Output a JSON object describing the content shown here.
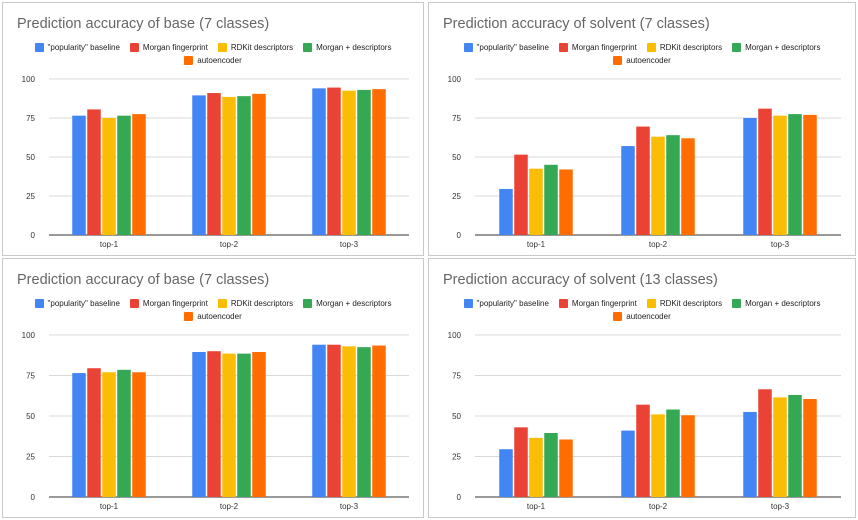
{
  "legend_labels": [
    "\"popularity\" baseline",
    "Morgan fingerprint",
    "RDKit descriptors",
    "Morgan + descriptors",
    "autoencoder"
  ],
  "colors": [
    "#4285f4",
    "#ea4335",
    "#fbbc04",
    "#34a853",
    "#ff6d01"
  ],
  "chart_data": [
    {
      "type": "bar",
      "title": "Prediction accuracy of base (7 classes)",
      "categories": [
        "top-1",
        "top-2",
        "top-3"
      ],
      "yticks": [
        "0",
        "25",
        "50",
        "75",
        "100"
      ],
      "ylim": [
        0,
        100
      ],
      "series": [
        {
          "name": "\"popularity\" baseline",
          "values": [
            76.5,
            89.5,
            94
          ]
        },
        {
          "name": "Morgan fingerprint",
          "values": [
            80.5,
            91,
            94.5
          ]
        },
        {
          "name": "RDKit descriptors",
          "values": [
            75,
            88.5,
            92.5
          ]
        },
        {
          "name": "Morgan + descriptors",
          "values": [
            76.5,
            89,
            93
          ]
        },
        {
          "name": "autoencoder",
          "values": [
            77.5,
            90.5,
            93.5
          ]
        }
      ]
    },
    {
      "type": "bar",
      "title": "Prediction accuracy of solvent (7 classes)",
      "categories": [
        "top-1",
        "top-2",
        "top-3"
      ],
      "yticks": [
        "0",
        "25",
        "50",
        "75",
        "100"
      ],
      "ylim": [
        0,
        100
      ],
      "series": [
        {
          "name": "\"popularity\" baseline",
          "values": [
            29.5,
            57,
            75
          ]
        },
        {
          "name": "Morgan fingerprint",
          "values": [
            51.5,
            69.5,
            81
          ]
        },
        {
          "name": "RDKit descriptors",
          "values": [
            42.5,
            63,
            76.5
          ]
        },
        {
          "name": "Morgan + descriptors",
          "values": [
            45,
            64,
            77.5
          ]
        },
        {
          "name": "autoencoder",
          "values": [
            42,
            62,
            77
          ]
        }
      ]
    },
    {
      "type": "bar",
      "title": "Prediction accuracy of base (7 classes)",
      "categories": [
        "top-1",
        "top-2",
        "top-3"
      ],
      "yticks": [
        "0",
        "25",
        "50",
        "75",
        "100"
      ],
      "ylim": [
        0,
        100
      ],
      "series": [
        {
          "name": "\"popularity\" baseline",
          "values": [
            76.5,
            89.5,
            94
          ]
        },
        {
          "name": "Morgan fingerprint",
          "values": [
            79.5,
            90,
            94
          ]
        },
        {
          "name": "RDKit descriptors",
          "values": [
            77,
            88.5,
            93
          ]
        },
        {
          "name": "Morgan + descriptors",
          "values": [
            78.5,
            88.5,
            92.5
          ]
        },
        {
          "name": "autoencoder",
          "values": [
            77,
            89.5,
            93.5
          ]
        }
      ]
    },
    {
      "type": "bar",
      "title": "Prediction accuracy of solvent (13 classes)",
      "categories": [
        "top-1",
        "top-2",
        "top-3"
      ],
      "yticks": [
        "0",
        "25",
        "50",
        "75",
        "100"
      ],
      "ylim": [
        0,
        100
      ],
      "series": [
        {
          "name": "\"popularity\" baseline",
          "values": [
            29.5,
            41,
            52.5
          ]
        },
        {
          "name": "Morgan fingerprint",
          "values": [
            43,
            57,
            66.5
          ]
        },
        {
          "name": "RDKit descriptors",
          "values": [
            36.5,
            51,
            61.5
          ]
        },
        {
          "name": "Morgan + descriptors",
          "values": [
            39.5,
            54,
            63
          ]
        },
        {
          "name": "autoencoder",
          "values": [
            35.5,
            50.5,
            60.5
          ]
        }
      ]
    }
  ]
}
